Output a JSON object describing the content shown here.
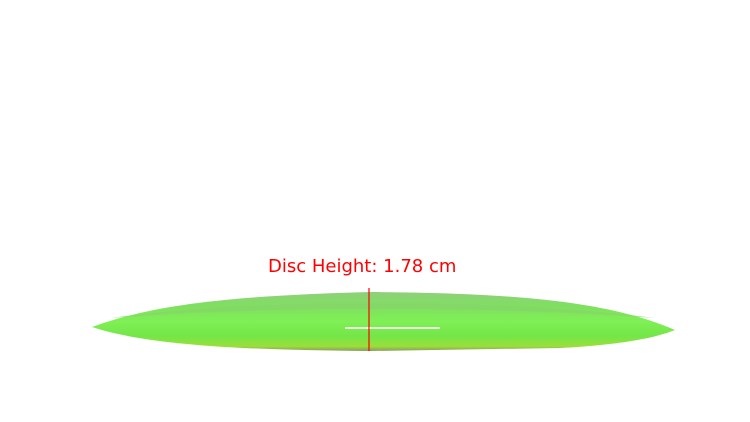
{
  "annotation": {
    "label": "Disc Height: 1.78 cm",
    "color": "#ff0000"
  },
  "disc": {
    "color": "#7ef050"
  }
}
